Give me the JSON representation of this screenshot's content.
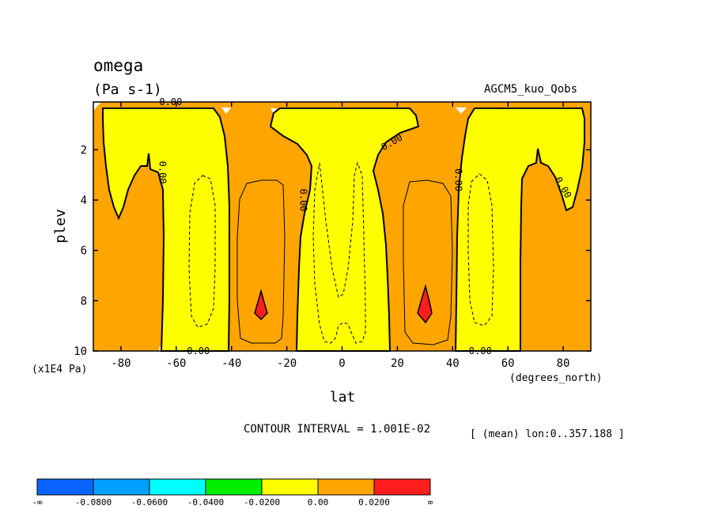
{
  "chart_data": {
    "type": "contour",
    "variable": "omega",
    "units": "(Pa s-1)",
    "experiment": "AGCM5_kuo_Qobs",
    "xlabel": "lat",
    "xunits": "(degrees_north)",
    "ylabel": "plev",
    "yunits": "(x1E4 Pa)",
    "xlim": [
      -90,
      90
    ],
    "ylim": [
      10,
      0.1
    ],
    "x_ticks": [
      -80,
      -60,
      -40,
      -20,
      0,
      20,
      40,
      60,
      80
    ],
    "y_ticks": [
      2,
      4,
      6,
      8,
      10
    ],
    "contour_interval_text": "CONTOUR INTERVAL = 1.001E-02",
    "averaging_text": "[ (mean) lon:0..357.188 ]",
    "contour_labels": [
      {
        "text": "0.00",
        "lat": -62,
        "plev": 0.1
      },
      {
        "text": "0.00",
        "lat": -65,
        "plev": 2.9
      },
      {
        "text": "0.00",
        "lat": -14,
        "plev": 4.0
      },
      {
        "text": "0.00",
        "lat": 18,
        "plev": 1.7
      },
      {
        "text": "0.00",
        "lat": 42,
        "plev": 3.2
      },
      {
        "text": "0.00",
        "lat": 80,
        "plev": 3.5
      },
      {
        "text": "0.00",
        "lat": -52,
        "plev": 10.0
      },
      {
        "text": "0.00",
        "lat": 50,
        "plev": 10.0
      }
    ],
    "colorbar": {
      "colors": [
        "#0a64ff",
        "#00a0ff",
        "#00ffff",
        "#00ee00",
        "#ffff00",
        "#ffa500",
        "#ff1e1e"
      ],
      "labels": [
        "-∞",
        "-0.0800",
        "-0.0600",
        "-0.0400",
        "-0.0200",
        "0.00",
        "0.0200",
        "∞"
      ]
    },
    "field_colors": {
      "positive": "#ffa500",
      "negative": "#ffff00",
      "max": "#ff1e1e"
    }
  }
}
